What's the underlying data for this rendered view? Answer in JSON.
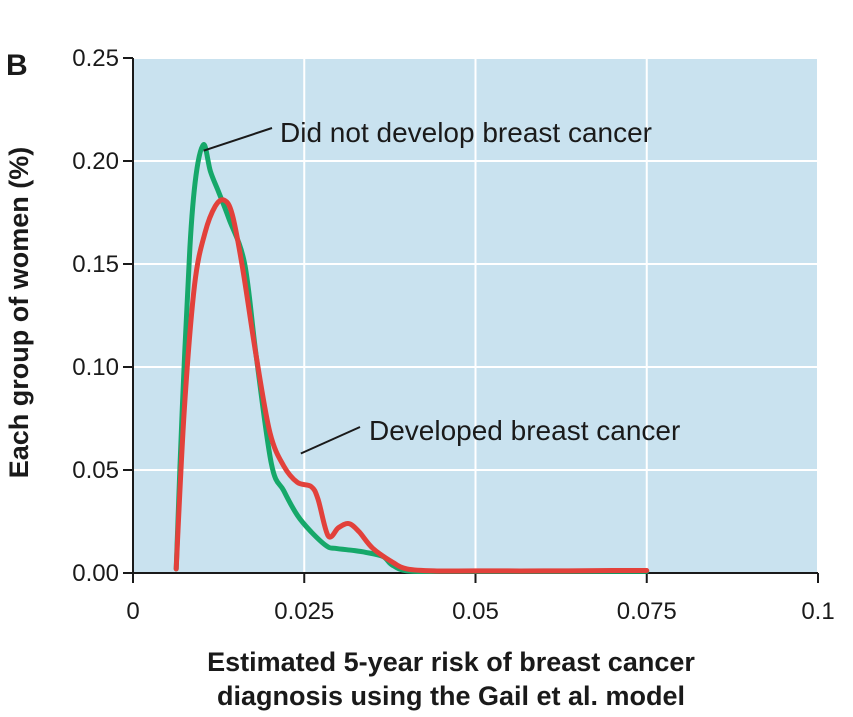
{
  "panel_label": "B",
  "colors": {
    "plot_background": "#c9e2ef",
    "grid": "#ffffff",
    "did_not_develop": "#16a86a",
    "developed": "#e2413b",
    "axis": "#1a1a1a"
  },
  "chart_data": {
    "type": "line",
    "title": "",
    "xlabel_lines": [
      "Estimated 5-year risk of breast cancer",
      "diagnosis using the Gail et al. model"
    ],
    "ylabel": "Each group of women (%)",
    "xlim": [
      0,
      0.1
    ],
    "ylim": [
      0,
      0.25
    ],
    "xticks": [
      0,
      0.025,
      0.05,
      0.075,
      0.1
    ],
    "xtick_labels": [
      "0",
      "0.025",
      "0.05",
      "0.075",
      "0.1"
    ],
    "yticks": [
      0,
      0.05,
      0.1,
      0.15,
      0.2,
      0.25
    ],
    "ytick_labels": [
      "0.00",
      "0.05",
      "0.10",
      "0.15",
      "0.20",
      "0.25"
    ],
    "grid": true,
    "legend": "none",
    "series": [
      {
        "name": "Did not develop breast cancer",
        "color": "#16a86a",
        "x": [
          0.0063,
          0.0072,
          0.0083,
          0.0092,
          0.0103,
          0.0113,
          0.0125,
          0.014,
          0.0163,
          0.018,
          0.0202,
          0.022,
          0.024,
          0.026,
          0.0283,
          0.0295,
          0.032,
          0.034,
          0.0365,
          0.0378,
          0.04,
          0.045,
          0.05,
          0.06,
          0.07,
          0.075
        ],
        "y": [
          0.002,
          0.08,
          0.158,
          0.193,
          0.208,
          0.195,
          0.185,
          0.172,
          0.15,
          0.105,
          0.053,
          0.04,
          0.028,
          0.02,
          0.013,
          0.012,
          0.011,
          0.01,
          0.008,
          0.004,
          0.001,
          0.0008,
          0.0008,
          0.0008,
          0.0008,
          0.0008
        ]
      },
      {
        "name": "Developed breast cancer",
        "color": "#e2413b",
        "x": [
          0.0063,
          0.0075,
          0.009,
          0.0105,
          0.012,
          0.0133,
          0.0145,
          0.016,
          0.018,
          0.02,
          0.022,
          0.024,
          0.026,
          0.027,
          0.0285,
          0.03,
          0.0315,
          0.033,
          0.035,
          0.038,
          0.04,
          0.044,
          0.05,
          0.06,
          0.07,
          0.075
        ],
        "y": [
          0.002,
          0.08,
          0.14,
          0.165,
          0.178,
          0.181,
          0.174,
          0.148,
          0.105,
          0.068,
          0.052,
          0.044,
          0.042,
          0.036,
          0.018,
          0.022,
          0.024,
          0.02,
          0.012,
          0.005,
          0.002,
          0.001,
          0.001,
          0.001,
          0.0012,
          0.0012
        ]
      }
    ],
    "annotations": [
      {
        "text": "Did not develop breast cancer",
        "series": "Did not develop breast cancer",
        "point": [
          0.0103,
          0.205
        ]
      },
      {
        "text": "Developed breast cancer",
        "series": "Developed breast cancer",
        "point": [
          0.0245,
          0.058
        ]
      }
    ]
  }
}
